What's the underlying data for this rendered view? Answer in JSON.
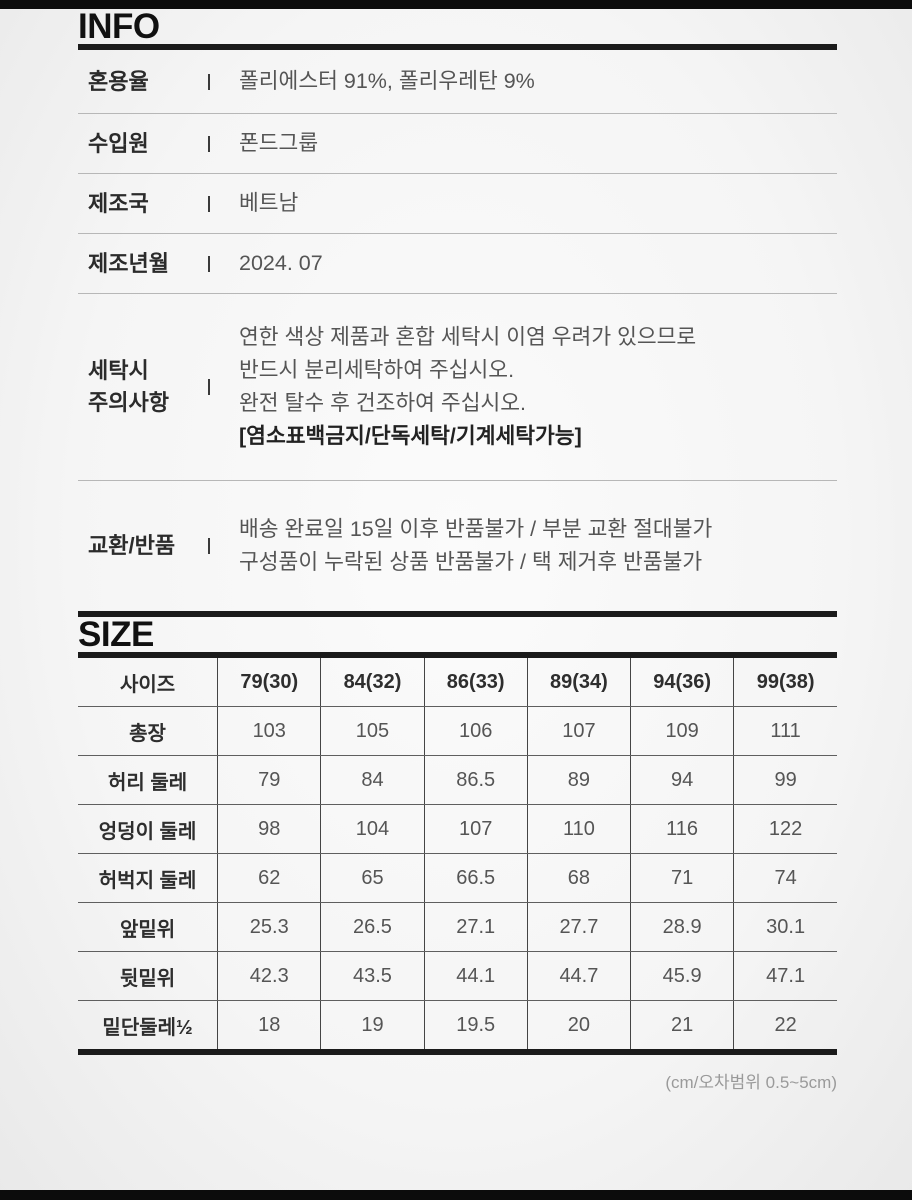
{
  "info": {
    "title": "INFO",
    "rows": [
      {
        "label": "혼용율",
        "value": "폴리에스터 91%, 폴리우레탄 9%"
      },
      {
        "label": "수입원",
        "value": "폰드그룹"
      },
      {
        "label": "제조국",
        "value": "베트남"
      },
      {
        "label": "제조년월",
        "value": "2024. 07"
      },
      {
        "label_line1": "세탁시",
        "label_line2": "주의사항",
        "line1": "연한 색상 제품과 혼합 세탁시 이염 우려가 있으므로",
        "line2": "반드시 분리세탁하여 주십시오.",
        "line3": "완전 탈수 후 건조하여 주십시오.",
        "line4_bold": "[염소표백금지/단독세탁/기계세탁가능]"
      },
      {
        "label": "교환/반품",
        "line1": "배송 완료일 15일 이후 반품불가 / 부분 교환 절대불가",
        "line2": "구성품이 누락된 상품 반품불가 / 택 제거후 반품불가"
      }
    ]
  },
  "size": {
    "title": "SIZE",
    "columns": [
      "사이즈",
      "79(30)",
      "84(32)",
      "86(33)",
      "89(34)",
      "94(36)",
      "99(38)"
    ],
    "rows": [
      {
        "label": "총장",
        "values": [
          "103",
          "105",
          "106",
          "107",
          "109",
          "111"
        ]
      },
      {
        "label": "허리 둘레",
        "values": [
          "79",
          "84",
          "86.5",
          "89",
          "94",
          "99"
        ]
      },
      {
        "label": "엉덩이 둘레",
        "values": [
          "98",
          "104",
          "107",
          "110",
          "116",
          "122"
        ]
      },
      {
        "label": "허벅지 둘레",
        "values": [
          "62",
          "65",
          "66.5",
          "68",
          "71",
          "74"
        ]
      },
      {
        "label": "앞밑위",
        "values": [
          "25.3",
          "26.5",
          "27.1",
          "27.7",
          "28.9",
          "30.1"
        ]
      },
      {
        "label": "뒷밑위",
        "values": [
          "42.3",
          "43.5",
          "44.1",
          "44.7",
          "45.9",
          "47.1"
        ]
      },
      {
        "label": "밑단둘레½",
        "values": [
          "18",
          "19",
          "19.5",
          "20",
          "21",
          "22"
        ]
      }
    ],
    "unit_note": "(cm/오차범위 0.5~5cm)"
  },
  "colors": {
    "accent_rule": "#1b1b1b",
    "label_text": "#2b2b2b",
    "value_text": "#555555",
    "muted_note": "#9a9a9a",
    "letterbox": "#0c0c0c"
  }
}
